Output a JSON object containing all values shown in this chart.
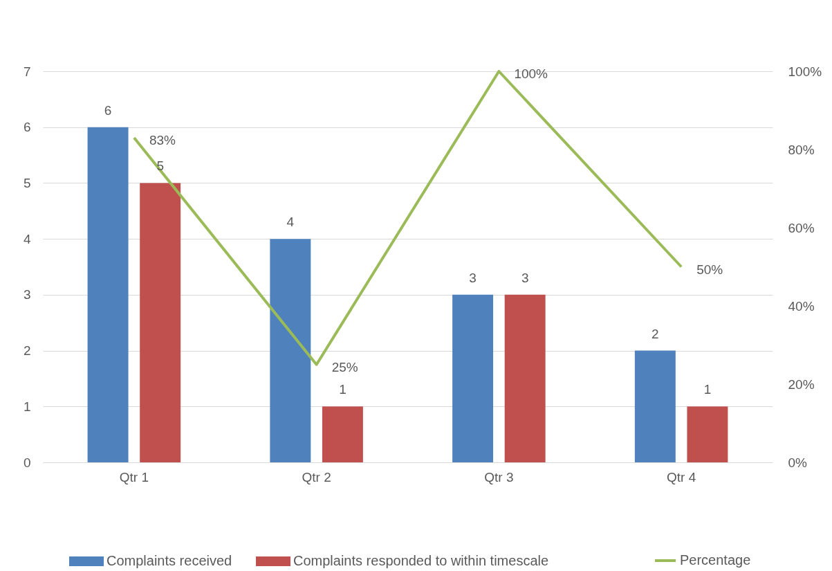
{
  "chart_data": {
    "type": "bar",
    "categories": [
      "Qtr 1",
      "Qtr 2",
      "Qtr 3",
      "Qtr 4"
    ],
    "series": [
      {
        "name": "Complaints received",
        "color": "#4f81bd",
        "values": [
          6,
          4,
          3,
          2
        ],
        "value_labels": [
          "6",
          "4",
          "3",
          "2"
        ]
      },
      {
        "name": "Complaints responded to within timescale",
        "color": "#c0504d",
        "values": [
          5,
          1,
          3,
          1
        ],
        "value_labels": [
          "5",
          "1",
          "3",
          "1"
        ]
      },
      {
        "name": "Percentage",
        "type": "line",
        "axis": "y2",
        "color": "#9bbb59",
        "values": [
          83,
          25,
          100,
          50
        ],
        "value_labels": [
          "83%",
          "25%",
          "100%",
          "50%"
        ]
      }
    ],
    "ylim": [
      0,
      7
    ],
    "yticks": [
      0,
      1,
      2,
      3,
      4,
      5,
      6,
      7
    ],
    "y2lim": [
      0,
      100
    ],
    "y2ticks": [
      {
        "value": 0,
        "label": "0%"
      },
      {
        "value": 20,
        "label": "20%"
      },
      {
        "value": 40,
        "label": "40%"
      },
      {
        "value": 60,
        "label": "60%"
      },
      {
        "value": 80,
        "label": "80%"
      },
      {
        "value": 100,
        "label": "100%"
      }
    ],
    "grid": "y",
    "legend": "bottom",
    "marker": "none",
    "line_style": "solid"
  }
}
